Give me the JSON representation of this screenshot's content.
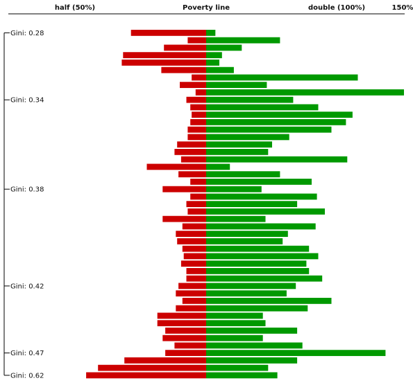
{
  "chart_data": {
    "type": "bar",
    "orientation": "diverging-horizontal",
    "header_labels": [
      {
        "text": "half (50%)",
        "value": 50
      },
      {
        "text": "Poverty line",
        "value": 100
      },
      {
        "text": "double (100%)",
        "value": 100
      },
      {
        "text": "150%",
        "value": 150
      }
    ],
    "gini_labels": [
      {
        "text": "Gini: 0.28",
        "row": 0
      },
      {
        "text": "Gini: 0.34",
        "row": 9
      },
      {
        "text": "Gini: 0.38",
        "row": 21
      },
      {
        "text": "Gini: 0.42",
        "row": 34
      },
      {
        "text": "Gini: 0.47",
        "row": 43
      },
      {
        "text": "Gini: 0.62",
        "row": 46
      }
    ],
    "series": [
      {
        "color": "#cc0000",
        "values": [
          57,
          14,
          32,
          63,
          64,
          34,
          11,
          20,
          8,
          15,
          12,
          11,
          12,
          14,
          14,
          22,
          24,
          19,
          45,
          21,
          12,
          33,
          12,
          15,
          14,
          33,
          18,
          23,
          22,
          18,
          17,
          19,
          15,
          15,
          21,
          23,
          18,
          23,
          37,
          37,
          31,
          33,
          24,
          31,
          62,
          82,
          91
        ]
      },
      {
        "color": "#009900",
        "values": [
          7,
          56,
          27,
          12,
          10,
          21,
          115,
          46,
          150,
          66,
          85,
          111,
          106,
          95,
          63,
          50,
          47,
          107,
          18,
          56,
          80,
          42,
          84,
          69,
          90,
          45,
          83,
          62,
          58,
          78,
          85,
          76,
          78,
          88,
          68,
          61,
          95,
          77,
          43,
          45,
          69,
          43,
          73,
          136,
          69,
          47,
          54
        ]
      }
    ],
    "xlim": [
      0,
      150
    ]
  }
}
